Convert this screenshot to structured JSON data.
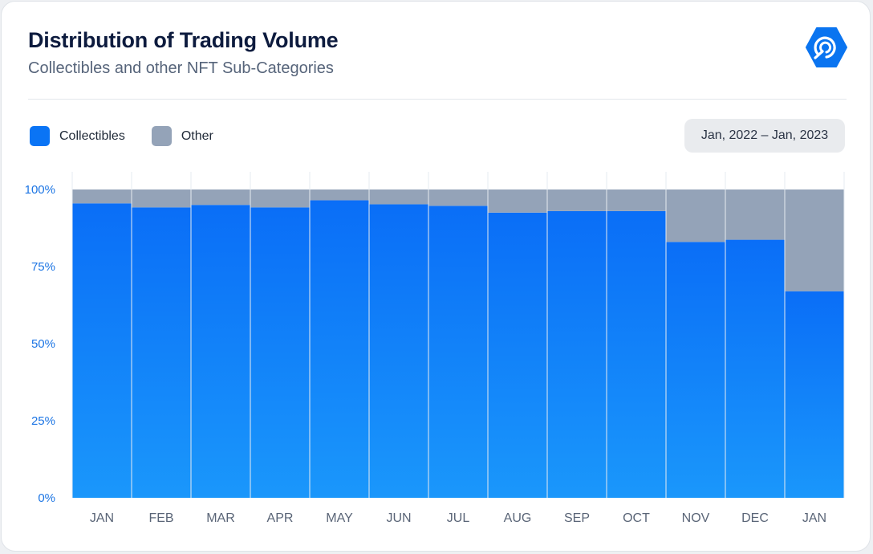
{
  "header": {
    "title": "Distribution of Trading Volume",
    "subtitle": "Collectibles and other NFT Sub-Categories"
  },
  "logo": {
    "icon": "signal-hexagon-icon",
    "color": "#0a74f0"
  },
  "date_range": {
    "label": "Jan, 2022 – Jan, 2023"
  },
  "legend": [
    {
      "label": "Collectibles",
      "color": "#0a74f5"
    },
    {
      "label": "Other",
      "color": "#94a3b8"
    }
  ],
  "chart_data": {
    "type": "bar",
    "stacked": true,
    "percent_stacked": true,
    "categories": [
      "JAN",
      "FEB",
      "MAR",
      "APR",
      "MAY",
      "JUN",
      "JUL",
      "AUG",
      "SEP",
      "OCT",
      "NOV",
      "DEC",
      "JAN"
    ],
    "series": [
      {
        "name": "Collectibles",
        "color": "#0a74f5",
        "values": [
          95.5,
          94.2,
          95.0,
          94.2,
          96.5,
          95.2,
          94.7,
          92.5,
          93.0,
          93.0,
          83.0,
          83.7,
          67.0
        ]
      },
      {
        "name": "Other",
        "color": "#94a3b8",
        "values": [
          4.5,
          5.8,
          5.0,
          5.8,
          3.5,
          4.8,
          5.3,
          7.5,
          7.0,
          7.0,
          17.0,
          16.3,
          33.0
        ]
      }
    ],
    "y_ticks": [
      "0%",
      "25%",
      "50%",
      "75%",
      "100%"
    ],
    "ylim": [
      0,
      100
    ],
    "grid": false,
    "legend_position": "top-left"
  }
}
